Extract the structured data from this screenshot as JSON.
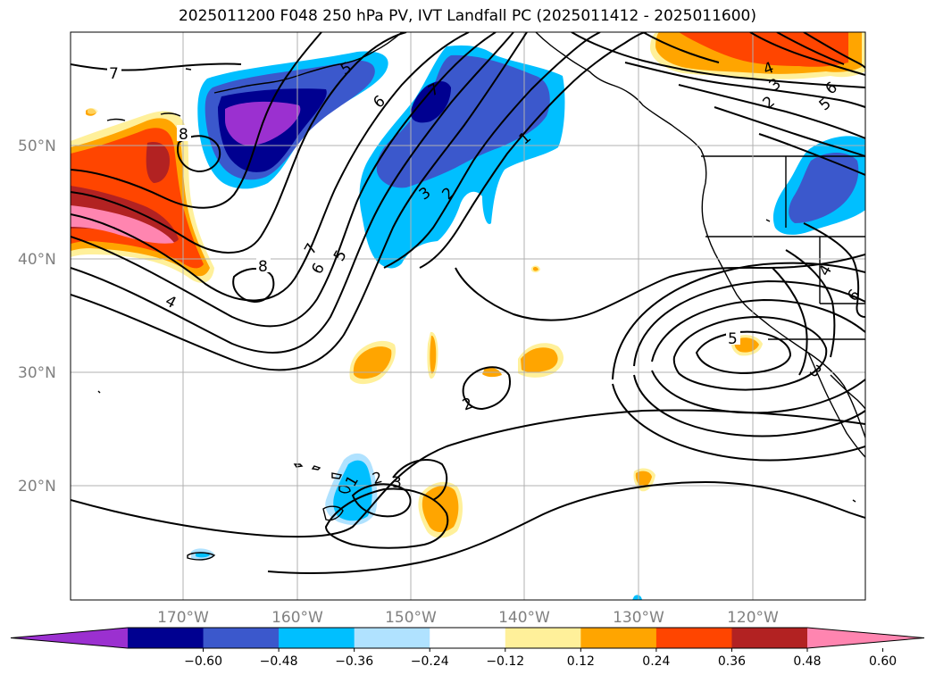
{
  "title": "2025011200 F048 250 hPa PV, IVT Landfall PC (2025011412 - 2025011600)",
  "colors": {
    "pv_bins": [
      "#9b30d0",
      "#000090",
      "#3b58cc",
      "#00bfff",
      "#b0e2ff",
      "#ffffff",
      "#fff09a",
      "#ffa500",
      "#ff4500",
      "#b22222",
      "#ff85b0"
    ],
    "coast": "#000000",
    "grid": "#b0b0b0",
    "contour": "#000000"
  },
  "lat_labels": [
    "50°N",
    "40°N",
    "30°N",
    "20°N"
  ],
  "lon_labels": [
    "170°W",
    "160°W",
    "150°W",
    "140°W",
    "130°W",
    "120°W"
  ],
  "colorbar": {
    "ticks": [
      "−0.60",
      "−0.48",
      "−0.36",
      "−0.24",
      "−0.12",
      "0.12",
      "0.24",
      "0.36",
      "0.48",
      "0.60"
    ]
  },
  "contour_labels": [
    "7",
    "8",
    "4",
    "5",
    "6",
    "7",
    "5",
    "6",
    "8",
    "7",
    "3",
    "2",
    "1",
    "4",
    "3",
    "2",
    "6",
    "5",
    "5",
    "4",
    "6",
    "3",
    "2",
    "1",
    "2",
    "3"
  ]
}
